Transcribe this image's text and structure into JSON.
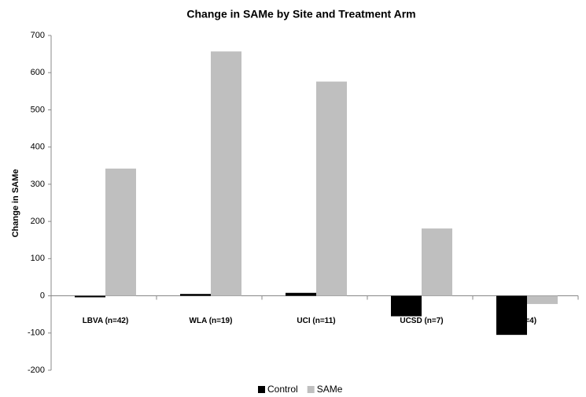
{
  "chart_data": {
    "type": "bar",
    "title": "Change in SAMe by Site and Treatment Arm",
    "y_label": "Change in SAMe",
    "categories": [
      "LBVA (n=42)",
      "WLA (n=19)",
      "UCI (n=11)",
      "UCSD (n=7)",
      "(n=4)"
    ],
    "series": [
      {
        "name": "Control",
        "color": "#000000",
        "values": [
          -4,
          5,
          8,
          -55,
          -105
        ]
      },
      {
        "name": "SAMe",
        "color": "#bfbfbf",
        "values": [
          342,
          657,
          576,
          181,
          -22
        ]
      }
    ],
    "ylim": [
      -200,
      700
    ],
    "yticks": [
      -200,
      -100,
      0,
      100,
      200,
      300,
      400,
      500,
      600,
      700
    ],
    "legend": "bottom"
  }
}
